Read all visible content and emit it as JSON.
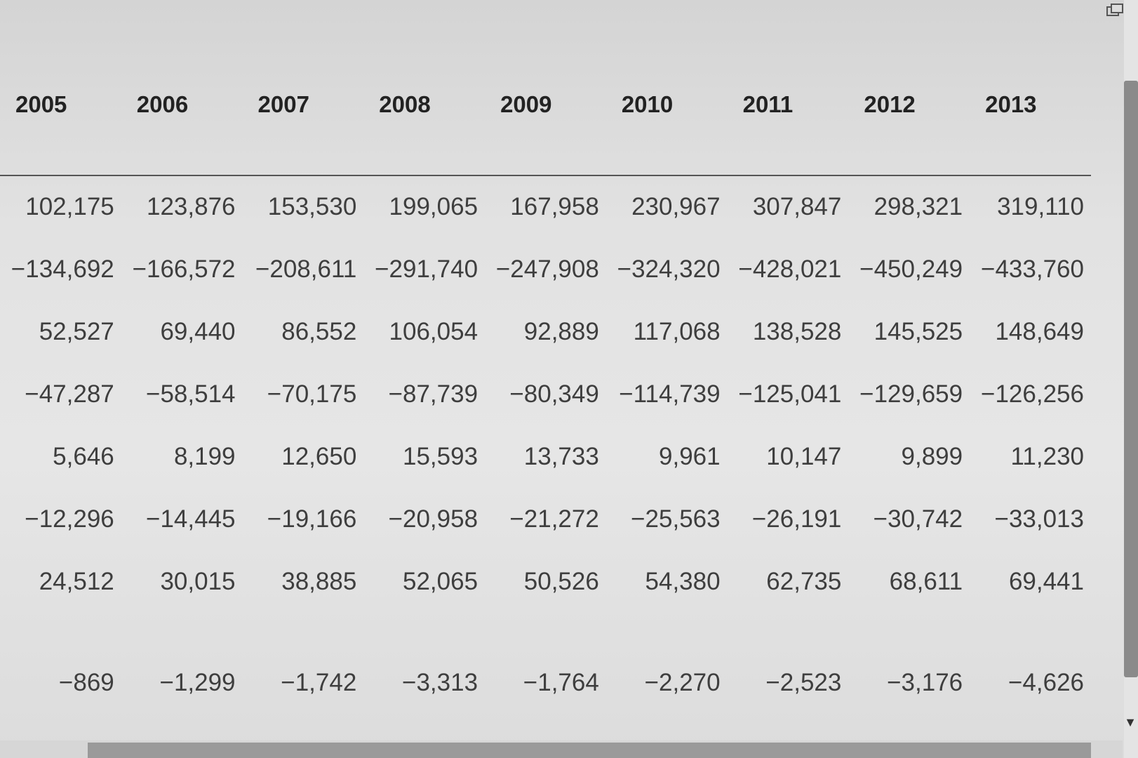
{
  "table": {
    "headers": [
      "2005",
      "2006",
      "2007",
      "2008",
      "2009",
      "2010",
      "2011",
      "2012",
      "2013"
    ],
    "rows": [
      [
        "102,175",
        "123,876",
        "153,530",
        "199,065",
        "167,958",
        "230,967",
        "307,847",
        "298,321",
        "319,110"
      ],
      [
        "−134,692",
        "−166,572",
        "−208,611",
        "−291,740",
        "−247,908",
        "−324,320",
        "−428,021",
        "−450,249",
        "−433,760"
      ],
      [
        "52,527",
        "69,440",
        "86,552",
        "106,054",
        "92,889",
        "117,068",
        "138,528",
        "145,525",
        "148,649"
      ],
      [
        "−47,287",
        "−58,514",
        "−70,175",
        "−87,739",
        "−80,349",
        "−114,739",
        "−125,041",
        "−129,659",
        "−126,256"
      ],
      [
        "5,646",
        "8,199",
        "12,650",
        "15,593",
        "13,733",
        "9,961",
        "10,147",
        "9,899",
        "11,230"
      ],
      [
        "−12,296",
        "−14,445",
        "−19,166",
        "−20,958",
        "−21,272",
        "−25,563",
        "−26,191",
        "−30,742",
        "−33,013"
      ],
      [
        "24,512",
        "30,015",
        "38,885",
        "52,065",
        "50,526",
        "54,380",
        "62,735",
        "68,611",
        "69,441"
      ],
      [
        "−869",
        "−1,299",
        "−1,742",
        "−3,313",
        "−1,764",
        "−2,270",
        "−2,523",
        "−3,176",
        "−4,626"
      ]
    ]
  },
  "icons": {
    "restore": "restore-window-icon",
    "scroll_down": "chevron-down-icon"
  },
  "colors": {
    "background": "#e2e2e2",
    "text": "#3e3e3e",
    "header_text": "#222222",
    "scroll_thumb": "#8a8a8a"
  }
}
